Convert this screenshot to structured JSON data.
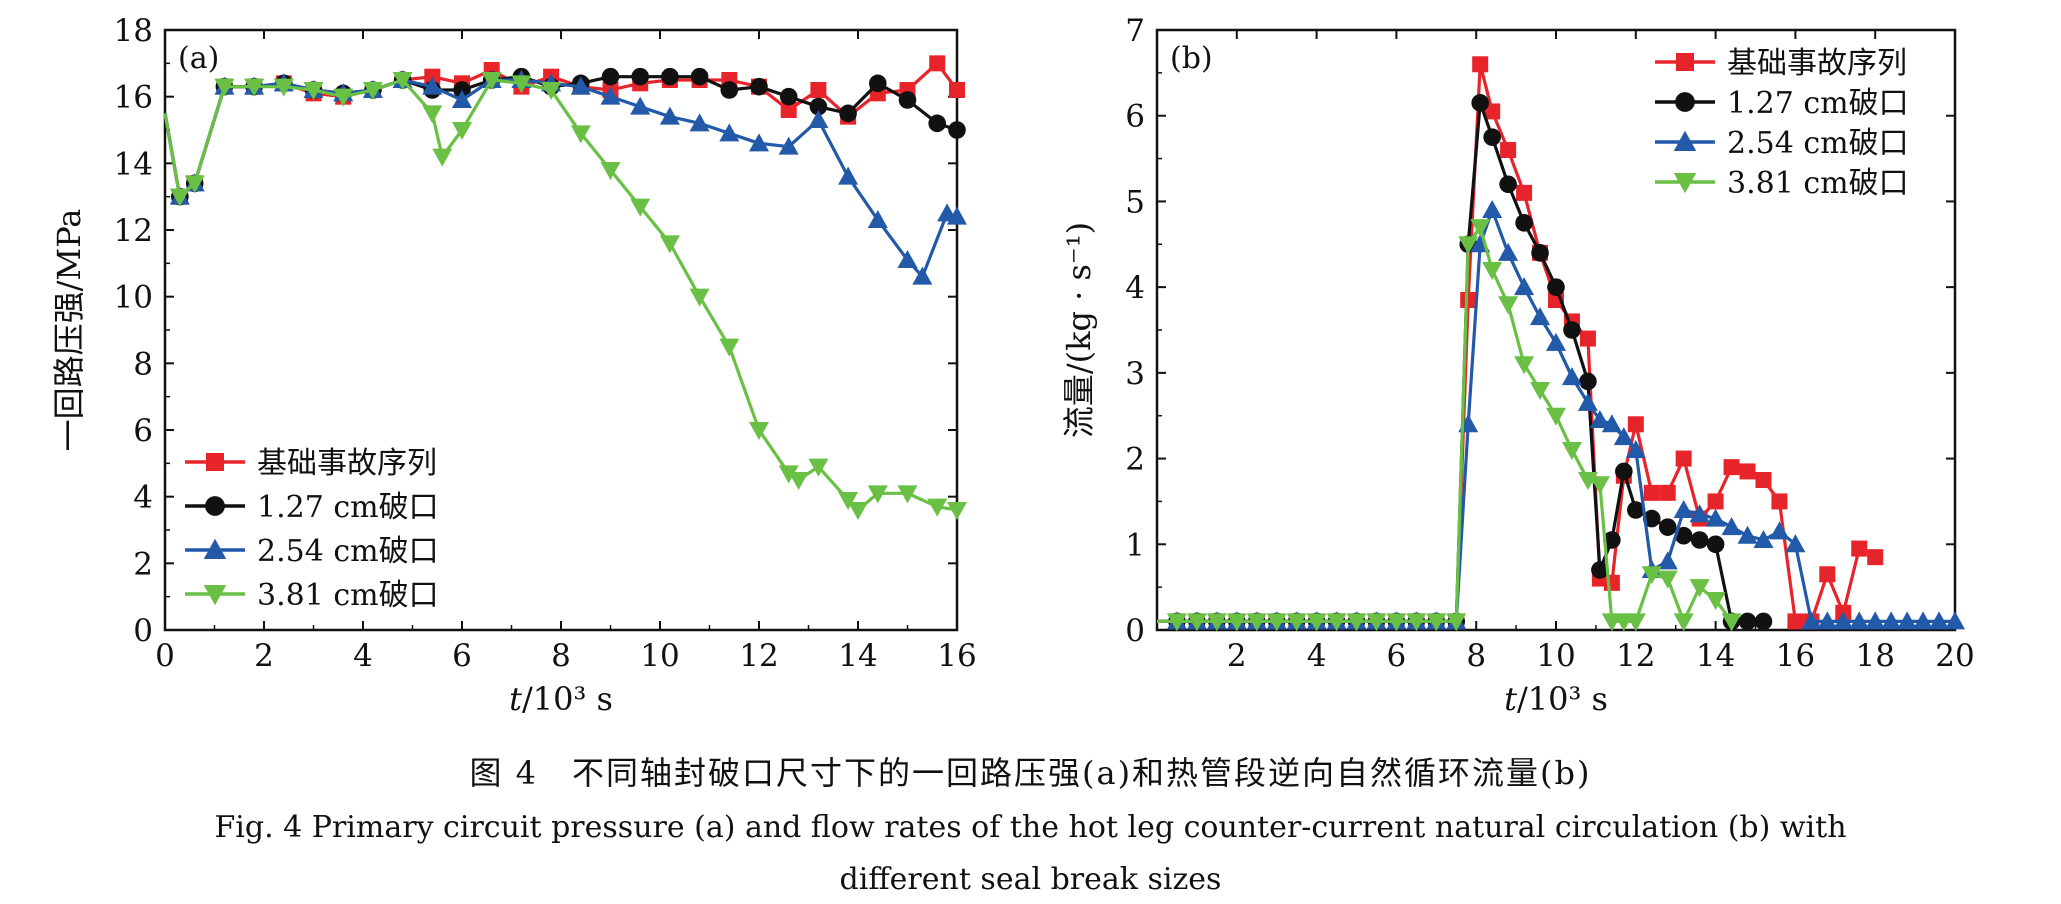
{
  "figure": {
    "caption_cn": "图 4　不同轴封破口尺寸下的一回路压强(a)和热管段逆向自然循环流量(b)",
    "caption_en_line1": "Fig. 4  Primary circuit pressure (a) and flow rates of the hot leg counter-current natural circulation (b) with",
    "caption_en_line2": "different seal break sizes"
  },
  "colors": {
    "red": "#e8242b",
    "black": "#111111",
    "blue": "#2259a8",
    "green": "#6abf45"
  },
  "chart_data": [
    {
      "type": "line",
      "panel_label": "(a)",
      "xlabel_italic": "t",
      "xlabel_rest": "/10³ s",
      "ylabel": "一回路压强/MPa",
      "xlim": [
        0,
        16
      ],
      "ylim": [
        0,
        18
      ],
      "xticks": [
        0,
        2,
        4,
        6,
        8,
        10,
        12,
        14,
        16
      ],
      "yticks": [
        0,
        2,
        4,
        6,
        8,
        10,
        12,
        14,
        16,
        18
      ],
      "legend_position": "bottom-left",
      "series": [
        {
          "name": "基础事故序列",
          "color": "#e8242b",
          "marker": "square",
          "x": [
            0,
            0.3,
            0.6,
            1.2,
            1.8,
            2.4,
            3.0,
            3.6,
            4.2,
            4.8,
            5.4,
            6.0,
            6.6,
            7.2,
            7.8,
            8.4,
            9.0,
            9.6,
            10.2,
            10.8,
            11.4,
            12.0,
            12.6,
            13.2,
            13.8,
            14.4,
            15.0,
            15.6,
            16.0
          ],
          "y": [
            15.5,
            13.0,
            13.4,
            16.3,
            16.3,
            16.4,
            16.1,
            16.0,
            16.2,
            16.5,
            16.6,
            16.4,
            16.8,
            16.3,
            16.6,
            16.3,
            16.2,
            16.4,
            16.5,
            16.5,
            16.5,
            16.3,
            15.6,
            16.2,
            15.4,
            16.1,
            16.2,
            17.0,
            16.2
          ]
        },
        {
          "name": "1.27 cm破口",
          "color": "#111111",
          "marker": "circle",
          "x": [
            0,
            0.3,
            0.6,
            1.2,
            1.8,
            2.4,
            3.0,
            3.6,
            4.2,
            4.8,
            5.4,
            6.0,
            6.6,
            7.2,
            7.8,
            8.4,
            9.0,
            9.6,
            10.2,
            10.8,
            11.4,
            12.0,
            12.6,
            13.2,
            13.8,
            14.4,
            15.0,
            15.6,
            16.0
          ],
          "y": [
            15.5,
            13.0,
            13.4,
            16.3,
            16.3,
            16.4,
            16.2,
            16.1,
            16.2,
            16.5,
            16.2,
            16.2,
            16.5,
            16.6,
            16.3,
            16.4,
            16.6,
            16.6,
            16.6,
            16.6,
            16.2,
            16.3,
            16.0,
            15.7,
            15.5,
            16.4,
            15.9,
            15.2,
            15.0
          ]
        },
        {
          "name": "2.54 cm破口",
          "color": "#2259a8",
          "marker": "triangle-up",
          "x": [
            0,
            0.3,
            0.6,
            1.2,
            1.8,
            2.4,
            3.0,
            3.6,
            4.2,
            4.8,
            5.4,
            6.0,
            6.6,
            7.2,
            7.8,
            8.4,
            9.0,
            9.6,
            10.2,
            10.8,
            11.4,
            12.0,
            12.6,
            13.2,
            13.8,
            14.4,
            15.0,
            15.3,
            15.8,
            16.0
          ],
          "y": [
            15.5,
            13.0,
            13.4,
            16.3,
            16.3,
            16.4,
            16.2,
            16.1,
            16.2,
            16.5,
            16.3,
            15.9,
            16.5,
            16.5,
            16.4,
            16.3,
            16.0,
            15.7,
            15.4,
            15.2,
            14.9,
            14.6,
            14.5,
            15.3,
            13.6,
            12.3,
            11.1,
            10.6,
            12.5,
            12.4
          ]
        },
        {
          "name": "3.81 cm破口",
          "color": "#6abf45",
          "marker": "triangle-down",
          "x": [
            0,
            0.3,
            0.6,
            1.2,
            1.8,
            2.4,
            3.0,
            3.6,
            4.2,
            4.8,
            5.4,
            5.6,
            6.0,
            6.6,
            7.2,
            7.8,
            8.4,
            9.0,
            9.6,
            10.2,
            10.8,
            11.4,
            12.0,
            12.6,
            12.8,
            13.2,
            13.8,
            14.0,
            14.4,
            15.0,
            15.6,
            16.0
          ],
          "y": [
            15.5,
            13.0,
            13.4,
            16.3,
            16.3,
            16.3,
            16.2,
            16.0,
            16.2,
            16.5,
            15.5,
            14.2,
            15.0,
            16.5,
            16.4,
            16.2,
            14.9,
            13.8,
            12.7,
            11.6,
            10.0,
            8.5,
            6.0,
            4.7,
            4.5,
            4.9,
            3.9,
            3.6,
            4.1,
            4.1,
            3.7,
            3.6
          ]
        }
      ]
    },
    {
      "type": "line",
      "panel_label": "(b)",
      "xlabel_italic": "t",
      "xlabel_rest": "/10³ s",
      "ylabel": "流量/(kg · s⁻¹)",
      "xlim": [
        0,
        20
      ],
      "ylim": [
        0,
        7
      ],
      "xticks": [
        2,
        4,
        6,
        8,
        10,
        12,
        14,
        16,
        18,
        20
      ],
      "yticks": [
        0,
        1,
        2,
        3,
        4,
        5,
        6,
        7
      ],
      "legend_position": "top-right",
      "series": [
        {
          "name": "基础事故序列",
          "color": "#e8242b",
          "marker": "square",
          "x": [
            0,
            0.5,
            1,
            1.5,
            2,
            2.5,
            3,
            3.5,
            4,
            4.5,
            5,
            5.5,
            6,
            6.5,
            7,
            7.5,
            7.8,
            8.1,
            8.4,
            8.8,
            9.2,
            9.6,
            10.0,
            10.4,
            10.8,
            11.1,
            11.4,
            11.7,
            12.0,
            12.4,
            12.8,
            13.2,
            13.6,
            14.0,
            14.4,
            14.8,
            15.2,
            15.6,
            16.0,
            16.4,
            16.8,
            17.2,
            17.6,
            18.0
          ],
          "y": [
            0.1,
            0.1,
            0.1,
            0.1,
            0.1,
            0.1,
            0.1,
            0.1,
            0.1,
            0.1,
            0.1,
            0.1,
            0.1,
            0.1,
            0.1,
            0.1,
            3.85,
            6.6,
            6.05,
            5.6,
            5.1,
            4.4,
            3.85,
            3.6,
            3.4,
            0.6,
            0.55,
            1.8,
            2.4,
            1.6,
            1.6,
            2.0,
            1.3,
            1.5,
            1.9,
            1.85,
            1.75,
            1.5,
            0.1,
            0.1,
            0.65,
            0.2,
            0.95,
            0.85
          ]
        },
        {
          "name": "1.27 cm破口",
          "color": "#111111",
          "marker": "circle",
          "x": [
            0,
            0.5,
            1,
            1.5,
            2,
            2.5,
            3,
            3.5,
            4,
            4.5,
            5,
            5.5,
            6,
            6.5,
            7,
            7.5,
            7.8,
            8.1,
            8.4,
            8.8,
            9.2,
            9.6,
            10.0,
            10.4,
            10.8,
            11.1,
            11.4,
            11.7,
            12.0,
            12.4,
            12.8,
            13.2,
            13.6,
            14.0,
            14.4,
            14.8,
            15.2
          ],
          "y": [
            0.1,
            0.1,
            0.1,
            0.1,
            0.1,
            0.1,
            0.1,
            0.1,
            0.1,
            0.1,
            0.1,
            0.1,
            0.1,
            0.1,
            0.1,
            0.1,
            4.5,
            6.15,
            5.75,
            5.2,
            4.75,
            4.4,
            4.0,
            3.5,
            2.9,
            0.7,
            1.05,
            1.85,
            1.4,
            1.3,
            1.2,
            1.1,
            1.05,
            1.0,
            0.1,
            0.1,
            0.1
          ]
        },
        {
          "name": "2.54 cm破口",
          "color": "#2259a8",
          "marker": "triangle-up",
          "x": [
            0,
            0.5,
            1,
            1.5,
            2,
            2.5,
            3,
            3.5,
            4,
            4.5,
            5,
            5.5,
            6,
            6.5,
            7,
            7.5,
            7.8,
            8.1,
            8.4,
            8.8,
            9.2,
            9.6,
            10.0,
            10.4,
            10.8,
            11.1,
            11.4,
            11.7,
            12.0,
            12.4,
            12.8,
            13.2,
            13.6,
            14.0,
            14.4,
            14.8,
            15.2,
            15.6,
            16.0,
            16.4,
            16.8,
            17.2,
            17.6,
            18.0,
            18.4,
            18.8,
            19.2,
            19.6,
            20.0
          ],
          "y": [
            0.1,
            0.1,
            0.1,
            0.1,
            0.1,
            0.1,
            0.1,
            0.1,
            0.1,
            0.1,
            0.1,
            0.1,
            0.1,
            0.1,
            0.1,
            0.1,
            2.4,
            4.5,
            4.9,
            4.4,
            4.0,
            3.65,
            3.35,
            2.95,
            2.65,
            2.45,
            2.4,
            2.25,
            2.1,
            0.7,
            0.8,
            1.4,
            1.35,
            1.3,
            1.2,
            1.1,
            1.05,
            1.15,
            1.0,
            0.1,
            0.1,
            0.1,
            0.1,
            0.1,
            0.1,
            0.1,
            0.1,
            0.1,
            0.1
          ]
        },
        {
          "name": "3.81 cm破口",
          "color": "#6abf45",
          "marker": "triangle-down",
          "x": [
            0,
            0.5,
            1,
            1.5,
            2,
            2.5,
            3,
            3.5,
            4,
            4.5,
            5,
            5.5,
            6,
            6.5,
            7,
            7.5,
            7.8,
            8.1,
            8.4,
            8.8,
            9.2,
            9.6,
            10.0,
            10.4,
            10.8,
            11.1,
            11.4,
            11.7,
            12.0,
            12.4,
            12.8,
            13.2,
            13.6,
            14.0,
            14.4
          ],
          "y": [
            0.1,
            0.1,
            0.1,
            0.1,
            0.1,
            0.1,
            0.1,
            0.1,
            0.1,
            0.1,
            0.1,
            0.1,
            0.1,
            0.1,
            0.1,
            0.1,
            4.5,
            4.7,
            4.2,
            3.8,
            3.1,
            2.8,
            2.5,
            2.1,
            1.75,
            1.7,
            0.1,
            0.1,
            0.1,
            0.65,
            0.6,
            0.1,
            0.5,
            0.35,
            0.1
          ]
        }
      ]
    }
  ]
}
